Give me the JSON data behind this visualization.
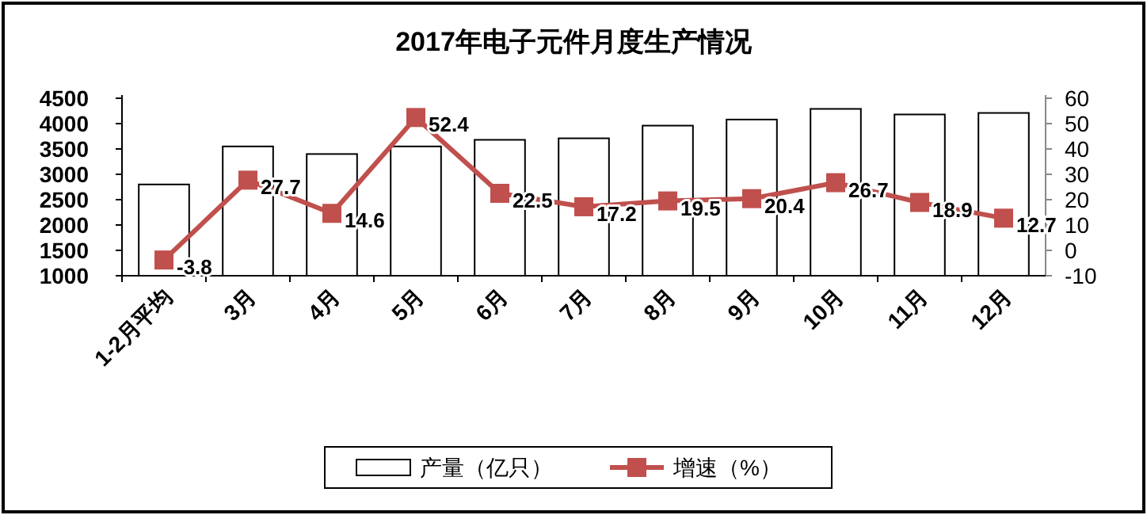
{
  "chart_data": {
    "type": "bar",
    "title": "2017年电子元件月度生产情况",
    "categories": [
      "1-2月平均",
      "3月",
      "4月",
      "5月",
      "6月",
      "7月",
      "8月",
      "9月",
      "10月",
      "11月",
      "12月"
    ],
    "series": [
      {
        "name": "产量（亿只）",
        "color": "#ffffff",
        "values": [
          2800,
          3550,
          3400,
          3550,
          3680,
          3710,
          3960,
          4080,
          4290,
          4180,
          4210
        ]
      },
      {
        "name": "增速（%）",
        "type": "line",
        "axis": "y2",
        "color": "#c0504d",
        "marker": "square",
        "values": [
          -3.8,
          27.7,
          14.6,
          52.4,
          22.5,
          17.2,
          19.5,
          20.4,
          26.7,
          18.9,
          12.7
        ],
        "value_labels": [
          "-3.8",
          "27.7",
          "14.6",
          "52.4",
          "22.5",
          "17.2",
          "19.5",
          "20.4",
          "26.7",
          "18.9",
          "12.7"
        ]
      }
    ],
    "ylim": [
      1000,
      4500
    ],
    "yticks": [
      1000,
      1500,
      2000,
      2500,
      3000,
      3500,
      4000,
      4500
    ],
    "y2lim": [
      -10,
      60
    ],
    "y2ticks": [
      -10,
      0,
      10,
      20,
      30,
      40,
      50,
      60
    ],
    "legend": "bottom",
    "grid": false
  }
}
